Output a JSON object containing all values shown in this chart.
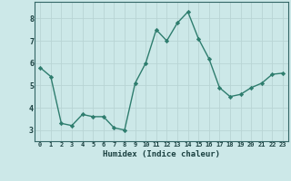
{
  "x": [
    0,
    1,
    2,
    3,
    4,
    5,
    6,
    7,
    8,
    9,
    10,
    11,
    12,
    13,
    14,
    15,
    16,
    17,
    18,
    19,
    20,
    21,
    22,
    23
  ],
  "y": [
    5.8,
    5.4,
    3.3,
    3.2,
    3.7,
    3.6,
    3.6,
    3.1,
    3.0,
    5.1,
    6.0,
    7.5,
    7.0,
    7.8,
    8.3,
    7.1,
    6.2,
    4.9,
    4.5,
    4.6,
    4.9,
    5.1,
    5.5,
    5.55
  ],
  "line_color": "#2e7d6e",
  "marker_color": "#2e7d6e",
  "bg_color": "#cce8e8",
  "grid_color": "#b8d4d4",
  "xlabel": "Humidex (Indice chaleur)",
  "ylim": [
    2.5,
    8.75
  ],
  "xlim": [
    -0.5,
    23.5
  ],
  "yticks": [
    3,
    4,
    5,
    6,
    7,
    8
  ],
  "xtick_labels": [
    "0",
    "1",
    "2",
    "3",
    "4",
    "5",
    "6",
    "7",
    "8",
    "9",
    "10",
    "11",
    "12",
    "13",
    "14",
    "15",
    "16",
    "17",
    "18",
    "19",
    "20",
    "21",
    "22",
    "23"
  ],
  "axis_color": "#336666",
  "font_color": "#1a4040"
}
